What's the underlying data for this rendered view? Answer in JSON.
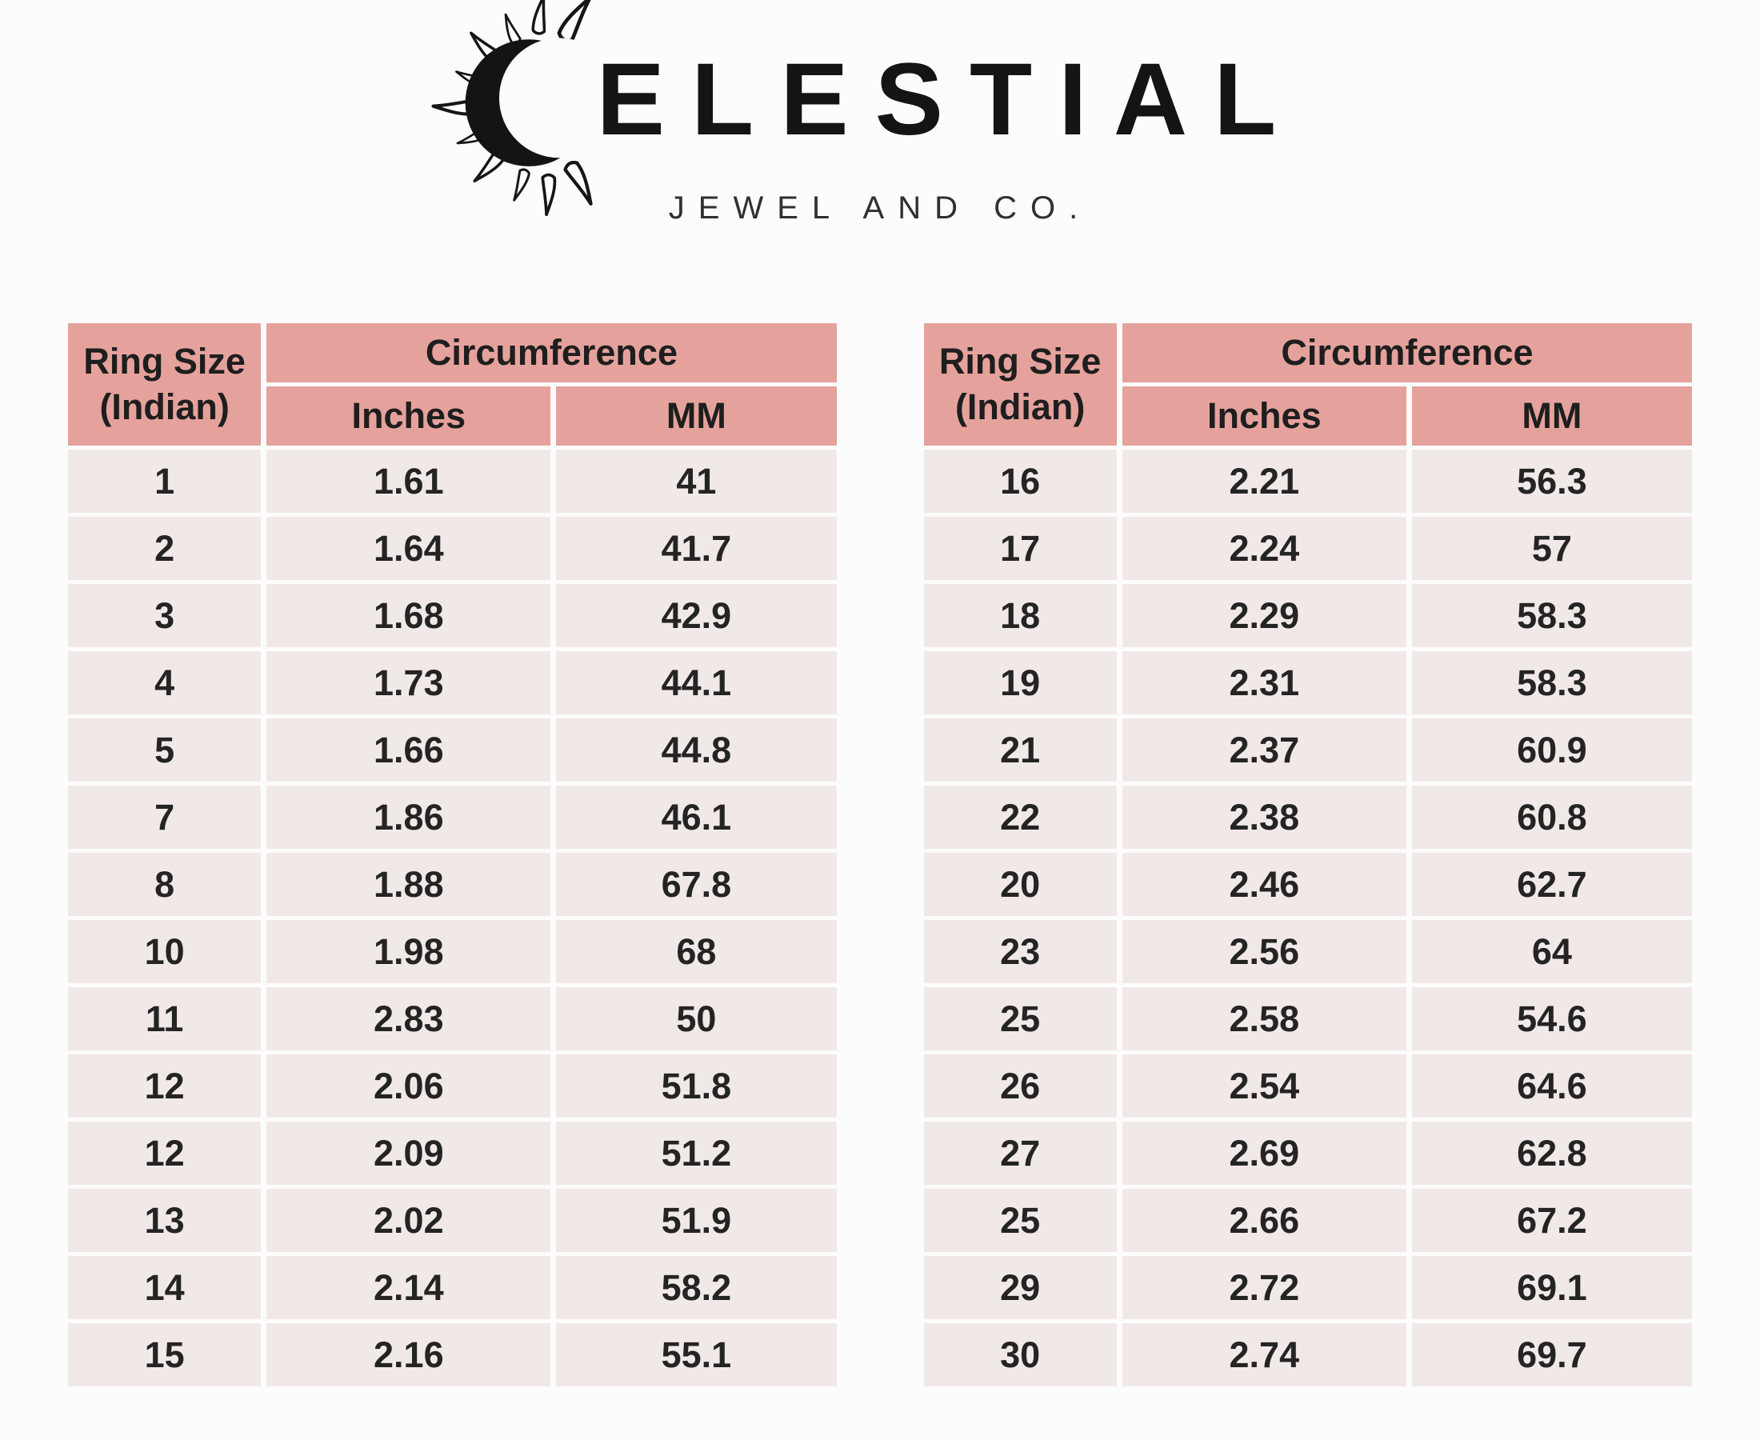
{
  "brand": {
    "name": "CELESTIAL",
    "name_after_icon": "ELESTIAL",
    "icon": "crescent-sun-icon",
    "tagline": "JEWEL AND CO."
  },
  "colors": {
    "header_pink": "#e5a29c",
    "row_pink": "#f1e9e8",
    "gap_white": "#fcfbfb",
    "text_dark": "#1e1e1e"
  },
  "headers": {
    "ring_size_line1": "Ring Size",
    "ring_size_line2": "(Indian)",
    "circumference": "Circumference",
    "inches": "Inches",
    "mm": "MM"
  },
  "chart_data": [
    {
      "type": "table",
      "title": "Ring size conversion chart (left table)",
      "columns": [
        "Ring Size (Indian)",
        "Circumference Inches",
        "Circumference MM"
      ],
      "rows": [
        [
          "1",
          "1.61",
          "41"
        ],
        [
          "2",
          "1.64",
          "41.7"
        ],
        [
          "3",
          "1.68",
          "42.9"
        ],
        [
          "4",
          "1.73",
          "44.1"
        ],
        [
          "5",
          "1.66",
          "44.8"
        ],
        [
          "7",
          "1.86",
          "46.1"
        ],
        [
          "8",
          "1.88",
          "67.8"
        ],
        [
          "10",
          "1.98",
          "68"
        ],
        [
          "11",
          "2.83",
          "50"
        ],
        [
          "12",
          "2.06",
          "51.8"
        ],
        [
          "12",
          "2.09",
          "51.2"
        ],
        [
          "13",
          "2.02",
          "51.9"
        ],
        [
          "14",
          "2.14",
          "58.2"
        ],
        [
          "15",
          "2.16",
          "55.1"
        ]
      ]
    },
    {
      "type": "table",
      "title": "Ring size conversion chart (right table)",
      "columns": [
        "Ring Size (Indian)",
        "Circumference Inches",
        "Circumference MM"
      ],
      "rows": [
        [
          "16",
          "2.21",
          "56.3"
        ],
        [
          "17",
          "2.24",
          "57"
        ],
        [
          "18",
          "2.29",
          "58.3"
        ],
        [
          "19",
          "2.31",
          "58.3"
        ],
        [
          "21",
          "2.37",
          "60.9"
        ],
        [
          "22",
          "2.38",
          "60.8"
        ],
        [
          "20",
          "2.46",
          "62.7"
        ],
        [
          "23",
          "2.56",
          "64"
        ],
        [
          "25",
          "2.58",
          "54.6"
        ],
        [
          "26",
          "2.54",
          "64.6"
        ],
        [
          "27",
          "2.69",
          "62.8"
        ],
        [
          "25",
          "2.66",
          "67.2"
        ],
        [
          "29",
          "2.72",
          "69.1"
        ],
        [
          "30",
          "2.74",
          "69.7"
        ]
      ]
    }
  ]
}
